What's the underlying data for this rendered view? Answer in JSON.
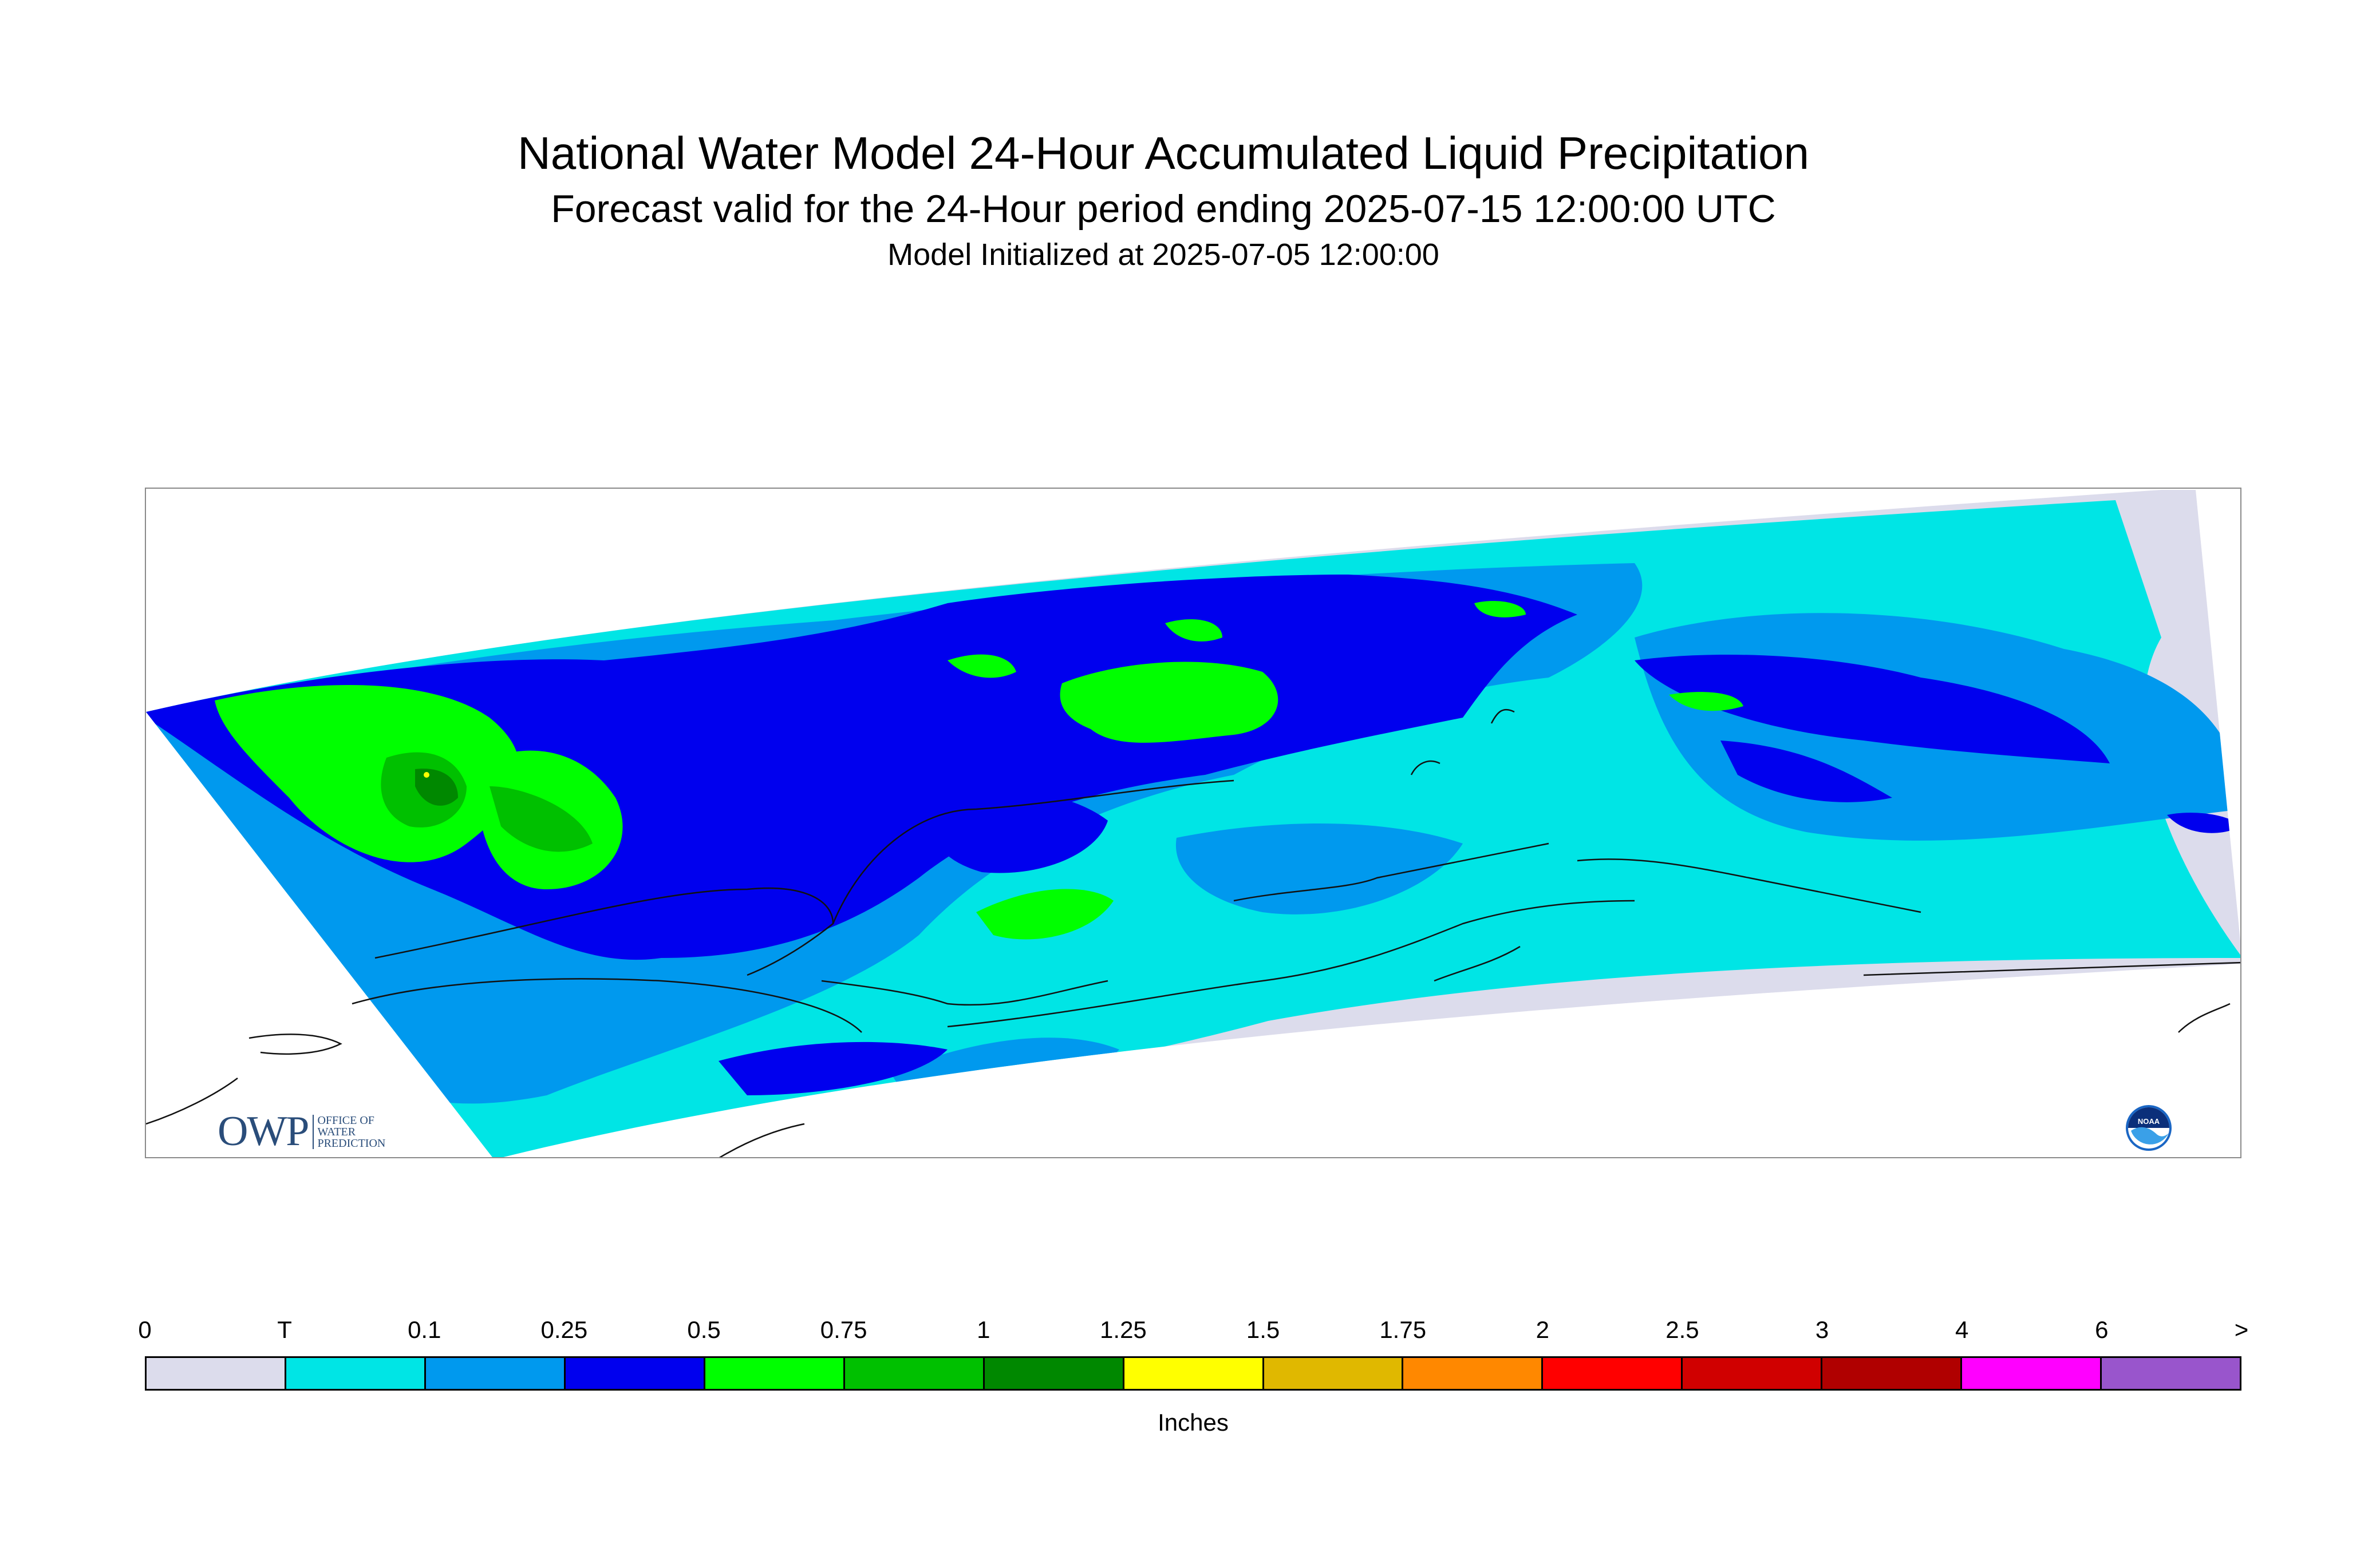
{
  "title": "National Water Model 24-Hour Accumulated Liquid Precipitation",
  "subtitle": "Forecast valid for the 24-Hour period ending 2025-07-15 12:00:00 UTC",
  "init_line": "Model Initialized at 2025-07-05 12:00:00",
  "legend": {
    "units": "Inches",
    "ticks": [
      "0",
      "T",
      "0.1",
      "0.25",
      "0.5",
      "0.75",
      "1",
      "1.25",
      "1.5",
      "1.75",
      "2",
      "2.5",
      "3",
      "4",
      "6",
      ">"
    ],
    "colors": [
      "#dcdcec",
      "#00e5e5",
      "#0099ee",
      "#0000ee",
      "#00ff00",
      "#00c000",
      "#008800",
      "#ffff00",
      "#e0b800",
      "#ff8800",
      "#ff0000",
      "#d00000",
      "#b00000",
      "#ff00ff",
      "#9955cc"
    ]
  },
  "logos": {
    "owp_big": "OWP",
    "owp_small": [
      "OFFICE OF",
      "WATER",
      "PREDICTION"
    ],
    "noaa": "NOAA"
  },
  "icons": [
    "owp-logo",
    "noaa-logo"
  ]
}
